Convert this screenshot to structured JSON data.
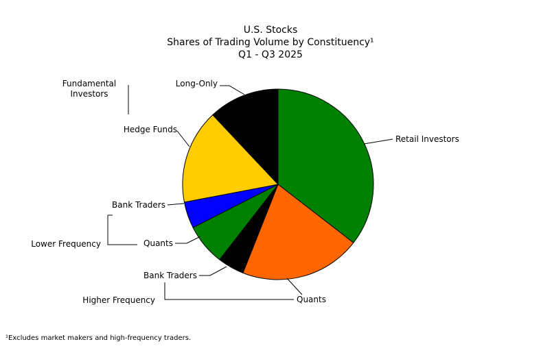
{
  "chart_data": {
    "type": "pie",
    "title": "U.S. Stocks",
    "subtitle": "Shares of Trading Volume by Constituency¹",
    "period": "Q1 - Q3 2025",
    "slices": [
      {
        "label": "Retail Investors",
        "value": 35.5,
        "color": "#008000"
      },
      {
        "label": "Quants",
        "value": 20.5,
        "color": "#ff6600"
      },
      {
        "label": "Bank Traders",
        "value": 4.5,
        "color": "#000000"
      },
      {
        "label": "Quants",
        "value": 7.0,
        "color": "#008000"
      },
      {
        "label": "Bank Traders",
        "value": 4.5,
        "color": "#0000ff"
      },
      {
        "label": "Hedge Funds",
        "value": 16.0,
        "color": "#ffcc00"
      },
      {
        "label": "Long-Only",
        "value": 12.0,
        "color": "#000000"
      }
    ],
    "groups": [
      {
        "label": "Fundamental Investors",
        "members": [
          "Hedge Funds",
          "Long-Only"
        ]
      },
      {
        "label": "Lower Frequency",
        "members": [
          "Bank Traders",
          "Quants"
        ]
      },
      {
        "label": "Higher Frequency",
        "members": [
          "Bank Traders",
          "Quants"
        ]
      }
    ],
    "group_label_lines": {
      "fundamental": [
        "Fundamental",
        "Investors"
      ],
      "lower": "Lower Frequency",
      "higher": "Higher Frequency"
    }
  },
  "footnote": "¹Excludes market makers and high-frequency traders."
}
